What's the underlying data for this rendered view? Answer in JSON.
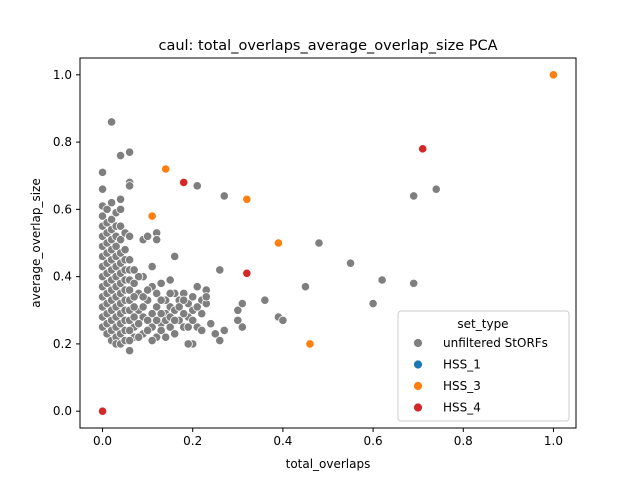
{
  "chart_data": {
    "type": "scatter",
    "title": "caul: total_overlaps_average_overlap_size PCA",
    "xlabel": "total_overlaps",
    "ylabel": "average_overlap_size",
    "xlim": [
      -0.05,
      1.05
    ],
    "ylim": [
      -0.05,
      1.05
    ],
    "xticks": [
      "0.0",
      "0.2",
      "0.4",
      "0.6",
      "0.8",
      "1.0"
    ],
    "yticks": [
      "0.0",
      "0.2",
      "0.4",
      "0.6",
      "0.8",
      "1.0"
    ],
    "grid": false,
    "legend": {
      "title": "set_type",
      "position": "lower-right",
      "entries": [
        "unfiltered StORFs",
        "HSS_1",
        "HSS_3",
        "HSS_4"
      ]
    },
    "series": [
      {
        "name": "unfiltered StORFs",
        "color": "#7f7f7f",
        "points": [
          [
            0.02,
            0.86
          ],
          [
            0.04,
            0.76
          ],
          [
            0.06,
            0.77
          ],
          [
            0.06,
            0.68
          ],
          [
            0.06,
            0.67
          ],
          [
            0.0,
            0.71
          ],
          [
            0.0,
            0.66
          ],
          [
            0.21,
            0.67
          ],
          [
            0.27,
            0.64
          ],
          [
            0.16,
            0.46
          ],
          [
            0.26,
            0.42
          ],
          [
            0.48,
            0.5
          ],
          [
            0.55,
            0.44
          ],
          [
            0.62,
            0.39
          ],
          [
            0.69,
            0.38
          ],
          [
            0.69,
            0.64
          ],
          [
            0.74,
            0.66
          ],
          [
            0.6,
            0.32
          ],
          [
            0.45,
            0.37
          ],
          [
            0.39,
            0.28
          ],
          [
            0.4,
            0.27
          ],
          [
            0.36,
            0.33
          ],
          [
            0.3,
            0.3
          ],
          [
            0.31,
            0.32
          ],
          [
            0.3,
            0.27
          ],
          [
            0.31,
            0.25
          ],
          [
            0.27,
            0.24
          ],
          [
            0.25,
            0.23
          ],
          [
            0.26,
            0.21
          ],
          [
            0.23,
            0.36
          ],
          [
            0.22,
            0.33
          ],
          [
            0.2,
            0.3
          ],
          [
            0.2,
            0.2
          ],
          [
            0.19,
            0.2
          ],
          [
            0.21,
            0.25
          ],
          [
            0.18,
            0.35
          ],
          [
            0.17,
            0.33
          ],
          [
            0.15,
            0.31
          ],
          [
            0.14,
            0.29
          ],
          [
            0.13,
            0.26
          ],
          [
            0.12,
            0.22
          ],
          [
            0.12,
            0.53
          ],
          [
            0.12,
            0.51
          ],
          [
            0.09,
            0.51
          ],
          [
            0.1,
            0.52
          ],
          [
            0.09,
            0.4
          ],
          [
            0.08,
            0.4
          ],
          [
            0.11,
            0.43
          ],
          [
            0.11,
            0.37
          ],
          [
            0.1,
            0.33
          ],
          [
            0.09,
            0.28
          ],
          [
            0.09,
            0.23
          ],
          [
            0.06,
            0.18
          ],
          [
            0.07,
            0.22
          ],
          [
            0.07,
            0.25
          ],
          [
            0.08,
            0.3
          ],
          [
            0.08,
            0.35
          ],
          [
            0.13,
            0.38
          ],
          [
            0.15,
            0.39
          ],
          [
            0.16,
            0.35
          ],
          [
            0.19,
            0.32
          ],
          [
            0.17,
            0.27
          ],
          [
            0.22,
            0.29
          ],
          [
            0.18,
            0.25
          ],
          [
            0.15,
            0.25
          ],
          [
            0.14,
            0.33
          ],
          [
            0.12,
            0.31
          ],
          [
            0.11,
            0.29
          ],
          [
            0.1,
            0.27
          ],
          [
            0.11,
            0.25
          ],
          [
            0.13,
            0.24
          ],
          [
            0.14,
            0.22
          ],
          [
            0.16,
            0.23
          ],
          [
            0.2,
            0.34
          ],
          [
            0.23,
            0.32
          ],
          [
            0.24,
            0.26
          ],
          [
            0.21,
            0.37
          ],
          [
            0.19,
            0.28
          ],
          [
            0.16,
            0.3
          ],
          [
            0.0,
            0.61
          ],
          [
            0.0,
            0.58
          ],
          [
            0.0,
            0.55
          ],
          [
            0.0,
            0.52
          ],
          [
            0.0,
            0.49
          ],
          [
            0.0,
            0.46
          ],
          [
            0.0,
            0.43
          ],
          [
            0.0,
            0.4
          ],
          [
            0.0,
            0.37
          ],
          [
            0.0,
            0.34
          ],
          [
            0.0,
            0.31
          ],
          [
            0.0,
            0.28
          ],
          [
            0.0,
            0.25
          ],
          [
            0.01,
            0.6
          ],
          [
            0.01,
            0.56
          ],
          [
            0.01,
            0.53
          ],
          [
            0.01,
            0.5
          ],
          [
            0.01,
            0.47
          ],
          [
            0.01,
            0.44
          ],
          [
            0.01,
            0.41
          ],
          [
            0.01,
            0.38
          ],
          [
            0.01,
            0.35
          ],
          [
            0.01,
            0.32
          ],
          [
            0.01,
            0.29
          ],
          [
            0.01,
            0.26
          ],
          [
            0.01,
            0.23
          ],
          [
            0.02,
            0.62
          ],
          [
            0.02,
            0.57
          ],
          [
            0.02,
            0.54
          ],
          [
            0.02,
            0.51
          ],
          [
            0.02,
            0.48
          ],
          [
            0.02,
            0.45
          ],
          [
            0.02,
            0.42
          ],
          [
            0.02,
            0.39
          ],
          [
            0.02,
            0.36
          ],
          [
            0.02,
            0.33
          ],
          [
            0.02,
            0.3
          ],
          [
            0.02,
            0.27
          ],
          [
            0.02,
            0.24
          ],
          [
            0.02,
            0.21
          ],
          [
            0.03,
            0.59
          ],
          [
            0.03,
            0.55
          ],
          [
            0.03,
            0.52
          ],
          [
            0.03,
            0.49
          ],
          [
            0.03,
            0.46
          ],
          [
            0.03,
            0.43
          ],
          [
            0.03,
            0.4
          ],
          [
            0.03,
            0.37
          ],
          [
            0.03,
            0.34
          ],
          [
            0.03,
            0.31
          ],
          [
            0.03,
            0.28
          ],
          [
            0.03,
            0.25
          ],
          [
            0.03,
            0.22
          ],
          [
            0.03,
            0.2
          ],
          [
            0.04,
            0.63
          ],
          [
            0.04,
            0.6
          ],
          [
            0.04,
            0.55
          ],
          [
            0.04,
            0.51
          ],
          [
            0.04,
            0.47
          ],
          [
            0.04,
            0.44
          ],
          [
            0.04,
            0.41
          ],
          [
            0.04,
            0.38
          ],
          [
            0.04,
            0.35
          ],
          [
            0.04,
            0.32
          ],
          [
            0.04,
            0.29
          ],
          [
            0.04,
            0.26
          ],
          [
            0.04,
            0.23
          ],
          [
            0.04,
            0.2
          ],
          [
            0.05,
            0.53
          ],
          [
            0.05,
            0.48
          ],
          [
            0.05,
            0.45
          ],
          [
            0.05,
            0.42
          ],
          [
            0.05,
            0.39
          ],
          [
            0.05,
            0.36
          ],
          [
            0.05,
            0.33
          ],
          [
            0.05,
            0.3
          ],
          [
            0.05,
            0.27
          ],
          [
            0.05,
            0.24
          ],
          [
            0.05,
            0.21
          ],
          [
            0.06,
            0.52
          ],
          [
            0.06,
            0.45
          ],
          [
            0.06,
            0.42
          ],
          [
            0.06,
            0.39
          ],
          [
            0.06,
            0.36
          ],
          [
            0.06,
            0.33
          ],
          [
            0.06,
            0.3
          ],
          [
            0.06,
            0.27
          ],
          [
            0.06,
            0.24
          ],
          [
            0.06,
            0.21
          ],
          [
            0.07,
            0.42
          ],
          [
            0.07,
            0.38
          ],
          [
            0.07,
            0.34
          ],
          [
            0.07,
            0.31
          ],
          [
            0.07,
            0.28
          ],
          [
            0.08,
            0.26
          ],
          [
            0.08,
            0.22
          ],
          [
            0.09,
            0.34
          ],
          [
            0.09,
            0.31
          ],
          [
            0.1,
            0.36
          ],
          [
            0.1,
            0.24
          ],
          [
            0.11,
            0.21
          ],
          [
            0.12,
            0.35
          ],
          [
            0.12,
            0.27
          ],
          [
            0.13,
            0.33
          ],
          [
            0.13,
            0.29
          ],
          [
            0.14,
            0.27
          ],
          [
            0.15,
            0.28
          ],
          [
            0.15,
            0.35
          ],
          [
            0.16,
            0.27
          ],
          [
            0.17,
            0.31
          ],
          [
            0.18,
            0.29
          ],
          [
            0.18,
            0.33
          ],
          [
            0.19,
            0.25
          ],
          [
            0.2,
            0.27
          ],
          [
            0.21,
            0.31
          ],
          [
            0.22,
            0.24
          ],
          [
            0.23,
            0.34
          ]
        ]
      },
      {
        "name": "HSS_1",
        "color": "#1f77b4",
        "points": []
      },
      {
        "name": "HSS_3",
        "color": "#ff7f0e",
        "points": [
          [
            0.14,
            0.72
          ],
          [
            0.11,
            0.58
          ],
          [
            0.32,
            0.63
          ],
          [
            0.39,
            0.5
          ],
          [
            0.46,
            0.2
          ],
          [
            1.0,
            1.0
          ]
        ]
      },
      {
        "name": "HSS_4",
        "color": "#d62728",
        "points": [
          [
            0.71,
            0.78
          ],
          [
            0.18,
            0.68
          ],
          [
            0.32,
            0.41
          ],
          [
            0.0,
            0.0
          ]
        ]
      }
    ]
  }
}
